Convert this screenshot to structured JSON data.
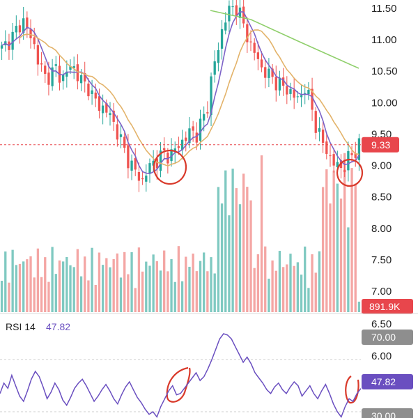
{
  "chart_data": {
    "type": "candlestick",
    "price_axis": {
      "ticks": [
        "11.50",
        "11.00",
        "10.50",
        "10.00",
        "9.50",
        "9.00",
        "8.50",
        "8.00",
        "7.50",
        "7.00"
      ],
      "ylim": [
        6.85,
        11.6
      ]
    },
    "current_price": {
      "label": "9.33",
      "value": 9.33,
      "color": "#e8464c"
    },
    "volume": {
      "last_label": "891.9K"
    },
    "rsi": {
      "name": "RSI 14",
      "value_label": "47.82",
      "value": 47.82,
      "color": "#6a4fc0",
      "axis_labels": [
        "6.50",
        "70.00",
        "6.00",
        "47.82",
        "30.00"
      ],
      "levels": [
        70,
        30
      ],
      "series": [
        44,
        52,
        48,
        58,
        50,
        42,
        38,
        46,
        55,
        61,
        57,
        49,
        40,
        45,
        52,
        47,
        39,
        35,
        41,
        48,
        52,
        55,
        50,
        44,
        38,
        42,
        47,
        51,
        46,
        40,
        36,
        43,
        49,
        53,
        47,
        41,
        37,
        32,
        28,
        30,
        26,
        34,
        40,
        46,
        50,
        43,
        44,
        48,
        52,
        56,
        60,
        54,
        57,
        63,
        70,
        78,
        86,
        90,
        89,
        86,
        80,
        74,
        68,
        72,
        67,
        60,
        56,
        52,
        47,
        44,
        49,
        52,
        47,
        44,
        49,
        53,
        50,
        42,
        46,
        50,
        44,
        40,
        46,
        51,
        44,
        36,
        30,
        26,
        34,
        40,
        38,
        44,
        47.82
      ]
    },
    "ma_fast": {
      "color": "#7d63c7"
    },
    "ma_slow": {
      "color": "#e3b36a"
    },
    "ma_long": {
      "color": "#8fcf6b"
    },
    "colors": {
      "up": "#26a69a",
      "down": "#ef5350",
      "up_vol": "#7fc9c1",
      "down_vol": "#f4a6a4",
      "annotation": "#d93a2b"
    },
    "price_path": [
      10.85,
      10.95,
      11.05,
      11.2,
      11.3,
      11.1,
      10.9,
      10.6,
      10.4,
      10.45,
      10.55,
      10.35,
      10.5,
      10.6,
      10.45,
      10.3,
      10.25,
      10.05,
      9.95,
      9.9,
      9.8,
      9.6,
      9.4,
      9.15,
      9.0,
      8.85,
      8.75,
      8.95,
      9.05,
      9.1,
      9.2,
      9.15,
      9.25,
      9.35,
      9.45,
      9.55,
      9.5,
      9.7,
      9.95,
      10.55,
      10.85,
      11.3,
      11.45,
      11.55,
      11.4,
      11.15,
      10.9,
      10.75,
      10.55,
      10.45,
      10.4,
      10.3,
      10.25,
      10.2,
      10.1,
      10.05,
      10.25,
      10.0,
      9.65,
      9.4,
      9.25,
      9.05,
      9.0,
      8.95,
      9.1,
      9.2,
      9.33
    ]
  }
}
